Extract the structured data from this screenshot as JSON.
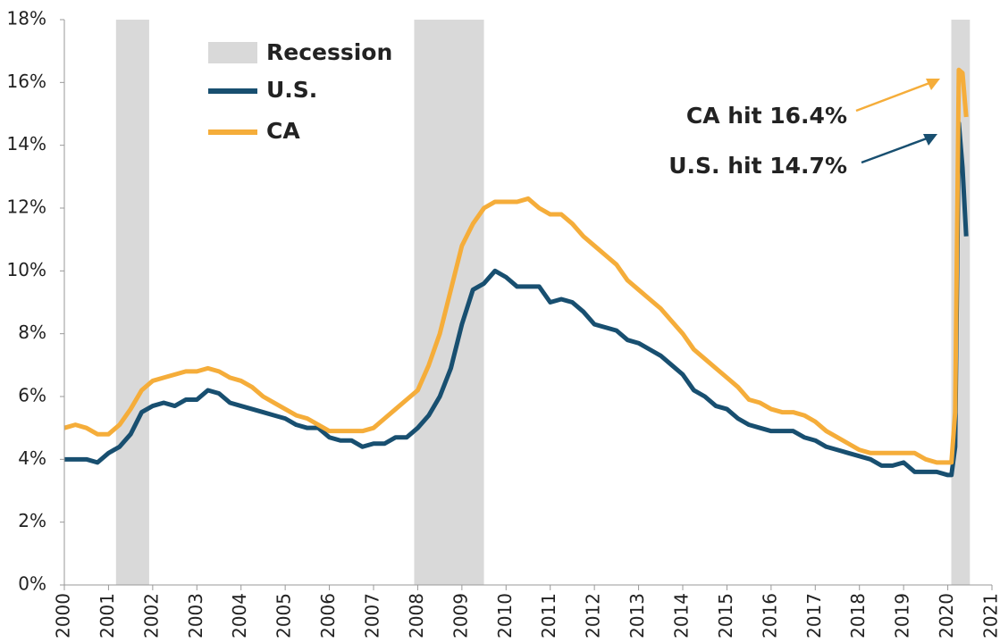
{
  "chart_data": {
    "type": "line",
    "xlim": [
      2000,
      2021
    ],
    "xticks": [
      2000,
      2001,
      2002,
      2003,
      2004,
      2005,
      2006,
      2007,
      2008,
      2009,
      2010,
      2011,
      2012,
      2013,
      2014,
      2015,
      2016,
      2017,
      2018,
      2019,
      2020,
      2021
    ],
    "ylim": [
      0,
      18
    ],
    "yticks": [
      {
        "value": 0,
        "label": "0%"
      },
      {
        "value": 2,
        "label": "2%"
      },
      {
        "value": 4,
        "label": "4%"
      },
      {
        "value": 6,
        "label": "6%"
      },
      {
        "value": 8,
        "label": "8%"
      },
      {
        "value": 10,
        "label": "10%"
      },
      {
        "value": 12,
        "label": "12%"
      },
      {
        "value": 14,
        "label": "14%"
      },
      {
        "value": 16,
        "label": "16%"
      },
      {
        "value": 18,
        "label": "18%"
      }
    ],
    "recession_label": "Recession",
    "recession_color": "#d9d9d9",
    "recessions": [
      [
        2001.17,
        2001.92
      ],
      [
        2007.92,
        2009.5
      ],
      [
        2020.08,
        2020.5
      ]
    ],
    "x": [
      2000,
      2000.25,
      2000.5,
      2000.75,
      2001,
      2001.25,
      2001.5,
      2001.75,
      2002,
      2002.25,
      2002.5,
      2002.75,
      2003,
      2003.25,
      2003.5,
      2003.75,
      2004,
      2004.25,
      2004.5,
      2004.75,
      2005,
      2005.25,
      2005.5,
      2005.75,
      2006,
      2006.25,
      2006.5,
      2006.75,
      2007,
      2007.25,
      2007.5,
      2007.75,
      2008,
      2008.25,
      2008.5,
      2008.75,
      2009,
      2009.25,
      2009.5,
      2009.75,
      2010,
      2010.25,
      2010.5,
      2010.75,
      2011,
      2011.25,
      2011.5,
      2011.75,
      2012,
      2012.25,
      2012.5,
      2012.75,
      2013,
      2013.25,
      2013.5,
      2013.75,
      2014,
      2014.25,
      2014.5,
      2014.75,
      2015,
      2015.25,
      2015.5,
      2015.75,
      2016,
      2016.25,
      2016.5,
      2016.75,
      2017,
      2017.25,
      2017.5,
      2017.75,
      2018,
      2018.25,
      2018.5,
      2018.75,
      2019,
      2019.25,
      2019.5,
      2019.75,
      2020,
      2020.083,
      2020.167,
      2020.25,
      2020.333,
      2020.417
    ],
    "series": [
      {
        "name": "U.S.",
        "color": "#184f70",
        "values": [
          4.0,
          4.0,
          4.0,
          3.9,
          4.2,
          4.4,
          4.8,
          5.5,
          5.7,
          5.8,
          5.7,
          5.9,
          5.9,
          6.2,
          6.1,
          5.8,
          5.7,
          5.6,
          5.5,
          5.4,
          5.3,
          5.1,
          5.0,
          5.0,
          4.7,
          4.6,
          4.6,
          4.4,
          4.5,
          4.5,
          4.7,
          4.7,
          5.0,
          5.4,
          6.0,
          6.9,
          8.3,
          9.4,
          9.6,
          10.0,
          9.8,
          9.5,
          9.5,
          9.5,
          9.0,
          9.1,
          9.0,
          8.7,
          8.3,
          8.2,
          8.1,
          7.8,
          7.7,
          7.5,
          7.3,
          7.0,
          6.7,
          6.2,
          6.0,
          5.7,
          5.6,
          5.3,
          5.1,
          5.0,
          4.9,
          4.9,
          4.9,
          4.7,
          4.6,
          4.4,
          4.3,
          4.2,
          4.1,
          4.0,
          3.8,
          3.8,
          3.9,
          3.6,
          3.6,
          3.6,
          3.5,
          3.5,
          4.4,
          14.7,
          13.3,
          11.1
        ]
      },
      {
        "name": "CA",
        "color": "#f5ad3a",
        "values": [
          5.0,
          5.1,
          5.0,
          4.8,
          4.8,
          5.1,
          5.6,
          6.2,
          6.5,
          6.6,
          6.7,
          6.8,
          6.8,
          6.9,
          6.8,
          6.6,
          6.5,
          6.3,
          6.0,
          5.8,
          5.6,
          5.4,
          5.3,
          5.1,
          4.9,
          4.9,
          4.9,
          4.9,
          5.0,
          5.3,
          5.6,
          5.9,
          6.2,
          7.0,
          8.0,
          9.4,
          10.8,
          11.5,
          12.0,
          12.2,
          12.2,
          12.2,
          12.3,
          12.0,
          11.8,
          11.8,
          11.5,
          11.1,
          10.8,
          10.5,
          10.2,
          9.7,
          9.4,
          9.1,
          8.8,
          8.4,
          8.0,
          7.5,
          7.2,
          6.9,
          6.6,
          6.3,
          5.9,
          5.8,
          5.6,
          5.5,
          5.5,
          5.4,
          5.2,
          4.9,
          4.7,
          4.5,
          4.3,
          4.2,
          4.2,
          4.2,
          4.2,
          4.2,
          4.0,
          3.9,
          3.9,
          3.9,
          5.5,
          16.4,
          16.3,
          14.9
        ]
      }
    ],
    "annotations": [
      "CA hit 16.4%",
      "U.S. hit 14.7%"
    ]
  }
}
